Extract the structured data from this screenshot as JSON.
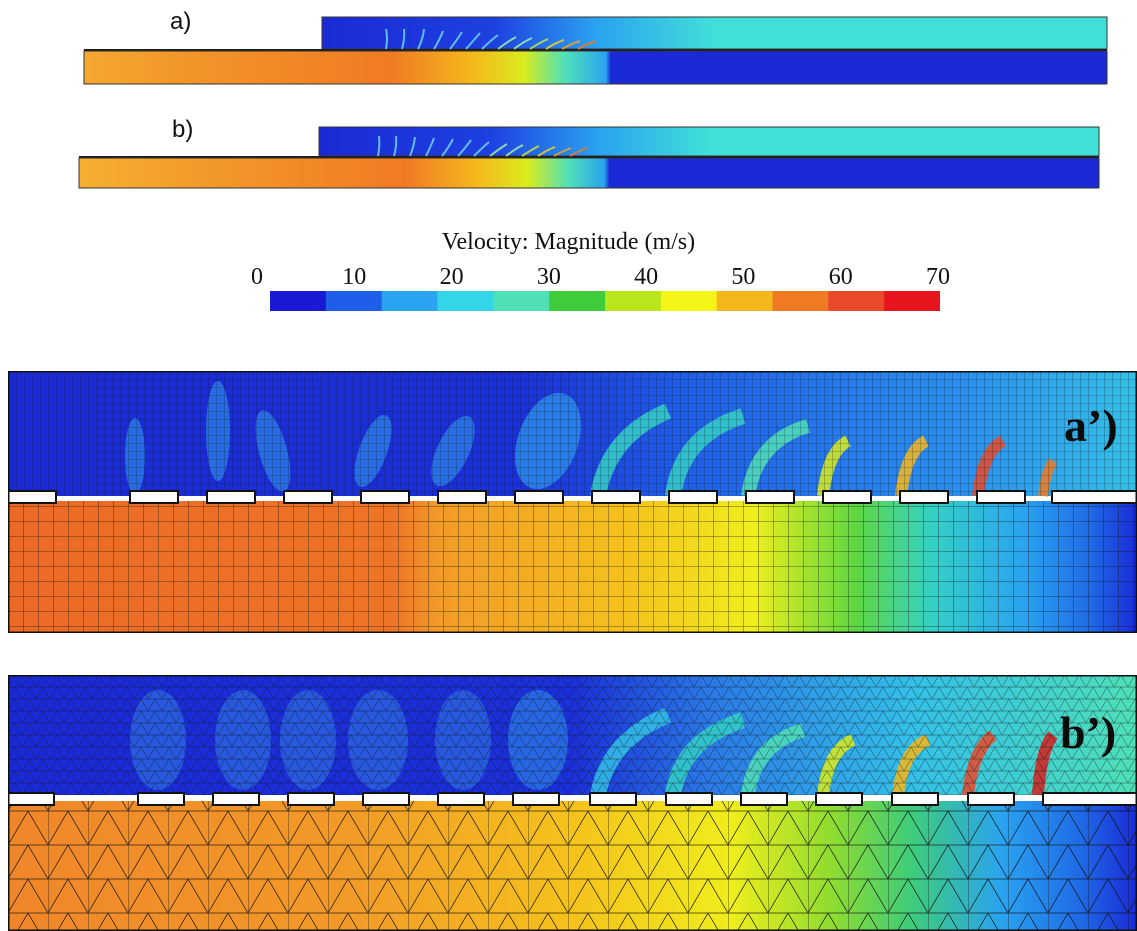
{
  "figure": {
    "panels": [
      {
        "id": "a",
        "label": "a)"
      },
      {
        "id": "b",
        "label": "b)"
      }
    ],
    "zoom_panels": [
      {
        "id": "a_prime",
        "label": "a’)",
        "mesh": "structured-quad"
      },
      {
        "id": "b_prime",
        "label": "b’)",
        "mesh": "unstructured-triangular"
      }
    ]
  },
  "colorbar": {
    "title": "Velocity: Magnitude (m/s)",
    "ticks": [
      "0",
      "10",
      "20",
      "30",
      "40",
      "50",
      "60",
      "70"
    ],
    "min": 0,
    "max": 70,
    "colors": [
      "#1a1ad6",
      "#1f5ee8",
      "#2aa3f0",
      "#33d6e8",
      "#4fe0b8",
      "#3ecc3a",
      "#b8e61a",
      "#f5f518",
      "#f5b81c",
      "#f07a24",
      "#e84a2a",
      "#e8141e"
    ]
  }
}
